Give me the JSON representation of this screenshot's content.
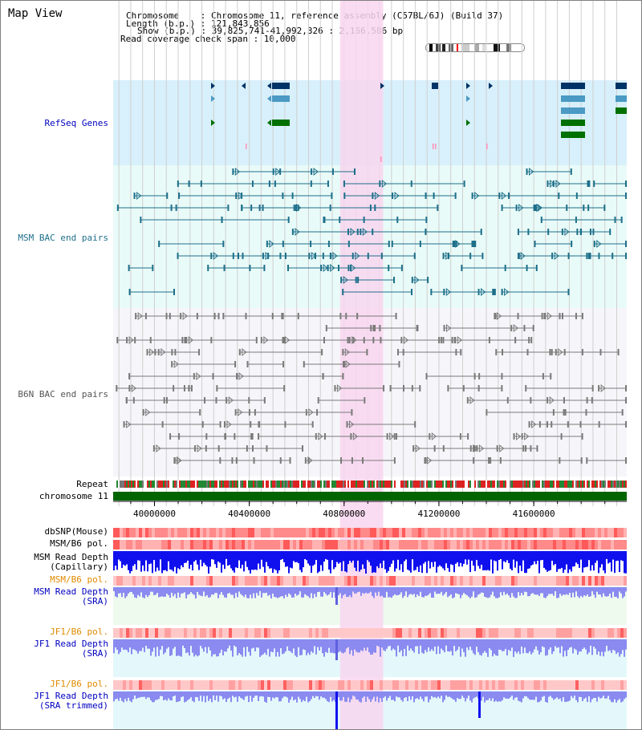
{
  "title": "Map View",
  "header": {
    "line1": "Chromosome    : Chromosome 11, reference assembly (C57BL/6J) (Build 37)",
    "line2": "Length (b.p.) : 121,843,856",
    "line3": "Show (b.p.) : 39,825,741-41,992,326 : 2,166,586 bp",
    "line4": "Read coverage check span : 10,000"
  },
  "tracks": {
    "refseq": "RefSeq Genes",
    "msm_bac": "MSM BAC end pairs",
    "b6n_bac": "B6N BAC end pairs",
    "repeat": "Repeat",
    "chromosome": "chromosome 11",
    "dbsnp": "dbSNP(Mouse)",
    "msm_b6_pol_1": "MSM/B6 pol.",
    "msm_depth_cap_1": "MSM Read Depth",
    "msm_depth_cap_2": "(Capillary)",
    "msm_b6_pol_2": "MSM/B6 pol.",
    "msm_depth_sra_1": "MSM Read Depth",
    "msm_depth_sra_2": "(SRA)",
    "jf1_b6_pol_1": "JF1/B6 pol.",
    "jf1_depth_sra_1": "JF1 Read Depth",
    "jf1_depth_sra_2": "(SRA)",
    "jf1_b6_pol_2": "JF1/B6 pol.",
    "jf1_depth_trim_1": "JF1 Read Depth",
    "jf1_depth_trim_2": "(SRA trimmed)"
  },
  "axis": {
    "ticks": [
      "40000000",
      "40400000",
      "40800000",
      "41200000",
      "41600000"
    ],
    "tick_values": [
      40000000,
      40400000,
      40800000,
      41200000,
      41600000
    ],
    "range": [
      39825741,
      41992326
    ]
  },
  "highlight_range": [
    40800000,
    40965000
  ],
  "colors": {
    "refseq_bg": "#d8f0fb",
    "msm_bg": "#e9fbf8",
    "b6n_bg": "#f6f6fa",
    "highlight": "#f8d6ee",
    "chrom_bar": "#006400",
    "gene_dark": "#003366",
    "gene_mid": "#4a9ac4",
    "gene_green": "#007000",
    "msm_pair": "#1d6f8a",
    "b6n_pair": "#7a7a7a",
    "depth_blue": "#1010ee",
    "depth_light": "#8a8af0",
    "label_blue": "#0000c0",
    "label_teal": "#1d6f8a",
    "label_orange": "#e08a00"
  }
}
